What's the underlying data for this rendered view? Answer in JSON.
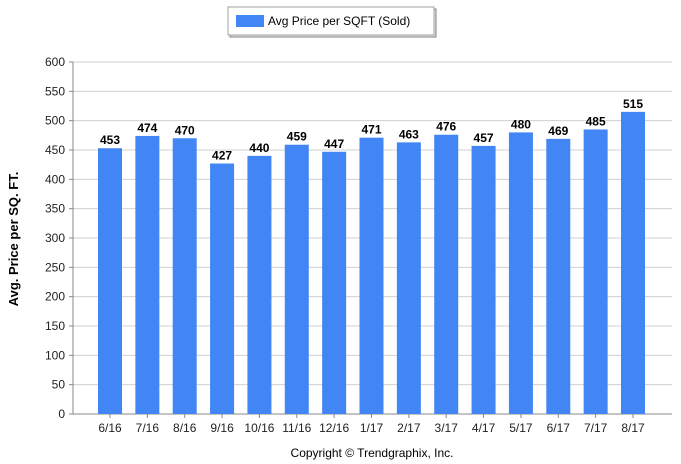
{
  "chart_data": {
    "type": "bar",
    "categories": [
      "6/16",
      "7/16",
      "8/16",
      "9/16",
      "10/16",
      "11/16",
      "12/16",
      "1/17",
      "2/17",
      "3/17",
      "4/17",
      "5/17",
      "6/17",
      "7/17",
      "8/17"
    ],
    "series": [
      {
        "name": "Avg Price per SQFT (Sold)",
        "values": [
          453,
          474,
          470,
          427,
          440,
          459,
          447,
          471,
          463,
          476,
          457,
          480,
          469,
          485,
          515
        ],
        "color": "#4285f4"
      }
    ],
    "ylabel": "Avg. Price per SQ. FT.",
    "xlabel": "",
    "ylim": [
      0,
      600
    ],
    "yticks": [
      0,
      50,
      100,
      150,
      200,
      250,
      300,
      350,
      400,
      450,
      500,
      550,
      600
    ],
    "grid": true,
    "legend_position": "top-center"
  },
  "footer": {
    "copyright": "Copyright © Trendgraphix, Inc."
  }
}
